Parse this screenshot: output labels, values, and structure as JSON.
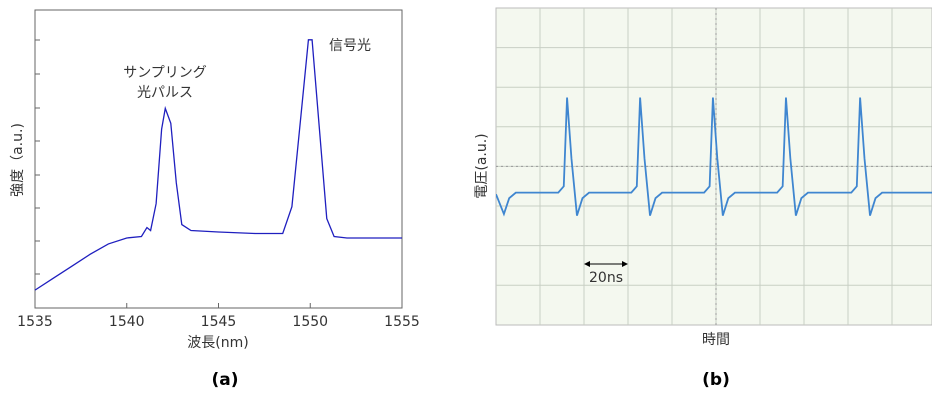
{
  "chart_data": [
    {
      "type": "line",
      "xlabel": "波長(nm)",
      "ylabel": "強度（a.u.)",
      "caption": "(a)",
      "annotations": [
        "サンプリング",
        "光パルス",
        "信号光"
      ],
      "x": [
        1535,
        1536,
        1537,
        1538,
        1539,
        1540,
        1540.8,
        1541.1,
        1541.3,
        1541.6,
        1541.9,
        1542.1,
        1542.4,
        1542.7,
        1543,
        1543.5,
        1545,
        1547,
        1548.5,
        1549,
        1549.5,
        1549.9,
        1550.1,
        1550.5,
        1550.9,
        1551.3,
        1552,
        1555
      ],
      "values": [
        0.6,
        1.0,
        1.4,
        1.8,
        2.15,
        2.35,
        2.4,
        2.7,
        2.6,
        3.5,
        6.0,
        6.7,
        6.2,
        4.2,
        2.8,
        2.6,
        2.55,
        2.5,
        2.5,
        3.4,
        6.5,
        9.0,
        9.0,
        6.0,
        3.0,
        2.4,
        2.35,
        2.35
      ],
      "color": "#1f1fbf",
      "xlim": [
        1535,
        1555
      ],
      "xticks": [
        1535,
        1540,
        1545,
        1550,
        1555
      ],
      "ylim": [
        0,
        10
      ]
    },
    {
      "type": "line",
      "xlabel": "時間",
      "ylabel": "電圧(a.u.)",
      "caption": "(b)",
      "annotations": [
        "20ns"
      ],
      "x": [
        0,
        3.6,
        6,
        9,
        28.3,
        30.8,
        32.3,
        34.3,
        36.8,
        39.3,
        42.3,
        61.5,
        64,
        65.5,
        67.5,
        70,
        72.5,
        75.5,
        94.6,
        97.1,
        98.6,
        100.6,
        103.1,
        105.6,
        108.6,
        127.8,
        130.3,
        131.8,
        133.8,
        136.3,
        138.8,
        141.8,
        161.5,
        164,
        165.5,
        167.5,
        170,
        172.5,
        175.5,
        200
      ],
      "values": [
        -0.7,
        -1.2,
        -0.8,
        -0.66,
        -0.66,
        -0.5,
        1.74,
        0.2,
        -1.24,
        -0.8,
        -0.66,
        -0.66,
        -0.5,
        1.74,
        0.2,
        -1.24,
        -0.8,
        -0.66,
        -0.66,
        -0.5,
        1.74,
        0.2,
        -1.24,
        -0.8,
        -0.66,
        -0.66,
        -0.5,
        1.74,
        0.2,
        -1.24,
        -0.8,
        -0.66,
        -0.66,
        -0.5,
        1.74,
        0.2,
        -1.24,
        -0.8,
        -0.66,
        -0.66
      ],
      "color": "#3f86d0",
      "xlim": [
        0,
        200
      ],
      "ylim": [
        -4,
        4
      ]
    }
  ]
}
